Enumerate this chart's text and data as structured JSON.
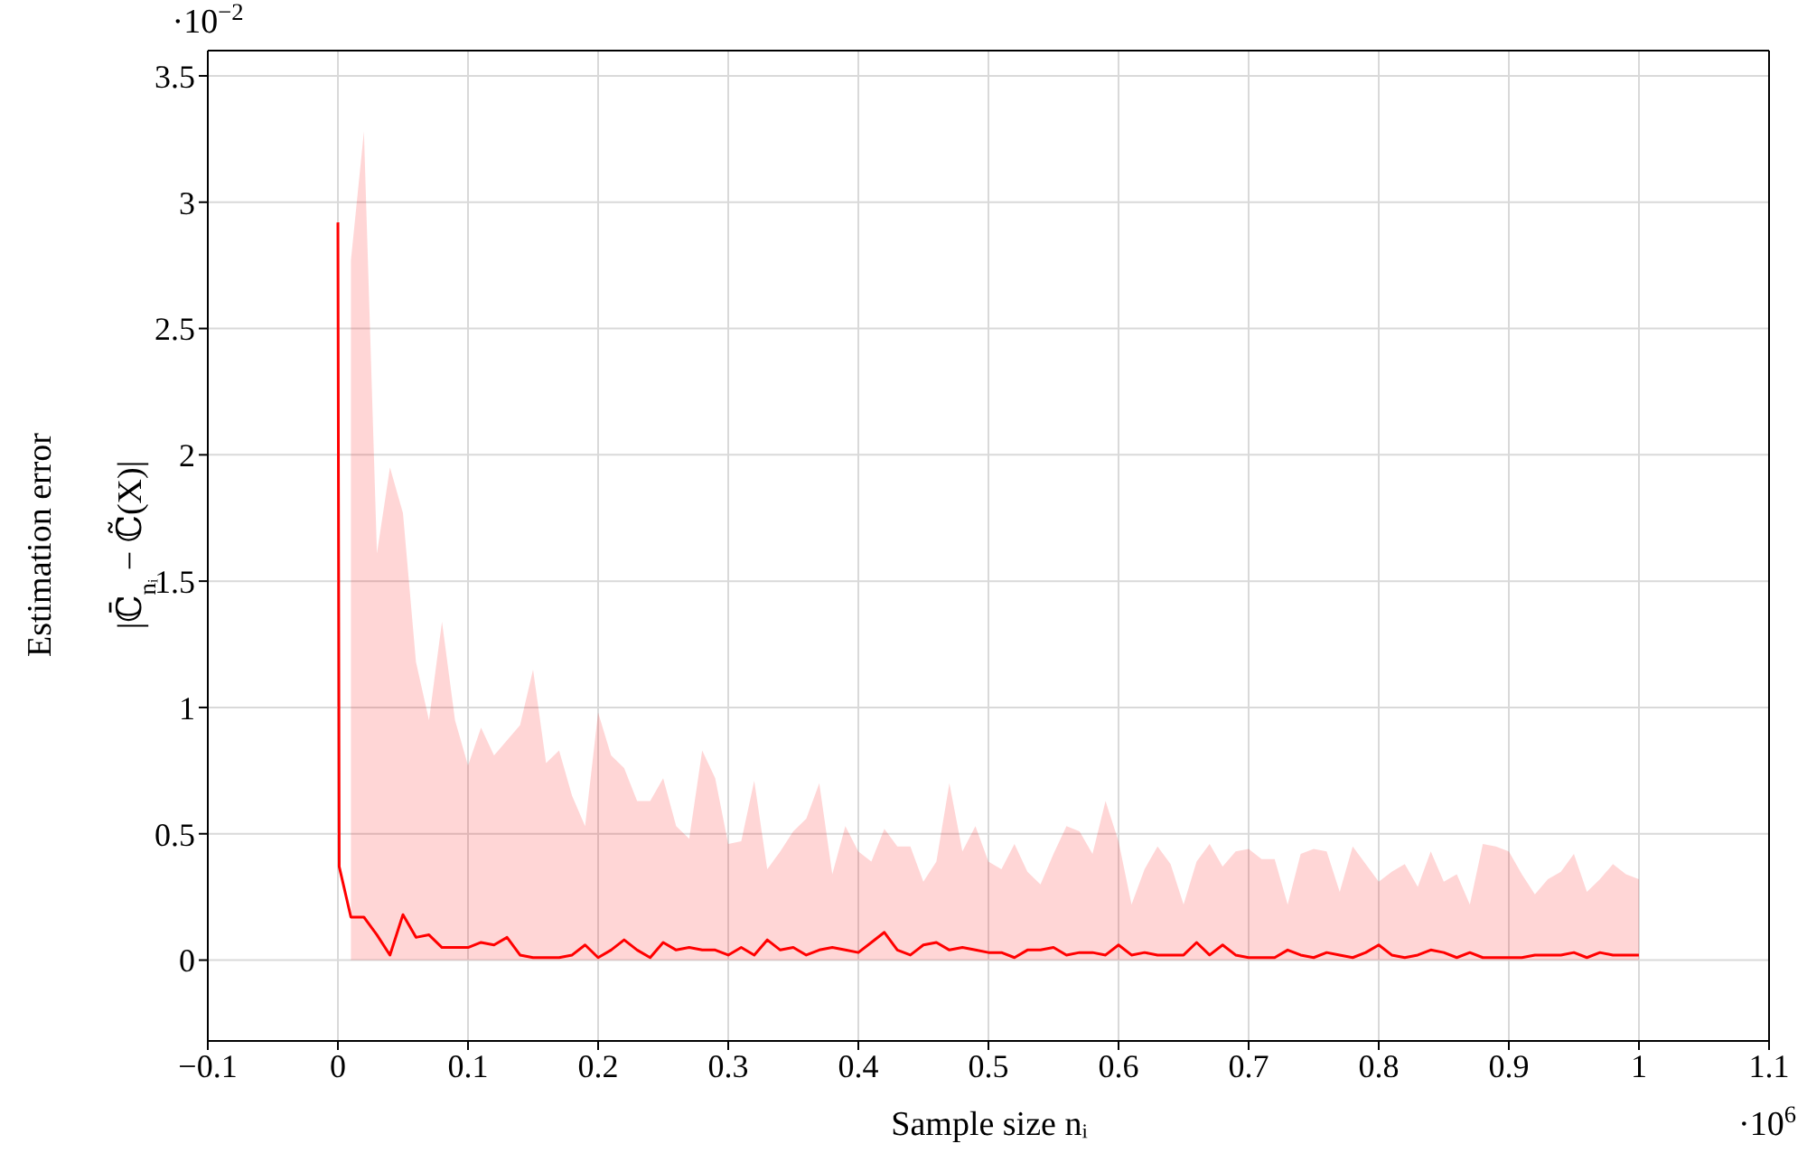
{
  "chart_data": {
    "type": "line",
    "xlabel": "Sample size nᵢ",
    "ylabel": "Estimation error\n|ℂ̄$_{nᵢ}$ − ℂ̃(X)|",
    "annotations": [
      "·10$^{−2}$",
      "·10$^{6}$"
    ],
    "xlim": [
      -0.1,
      1.1
    ],
    "xticks": [
      {
        "value": -0.1,
        "label": "−0.1"
      },
      0,
      0.1,
      0.2,
      0.3,
      0.4,
      0.5,
      0.6,
      0.7,
      0.8,
      0.9,
      1,
      1.1
    ],
    "ylim": [
      -0.32,
      3.6
    ],
    "yticks": [
      0,
      0.5,
      1,
      1.5,
      2,
      2.5,
      3,
      3.5
    ],
    "grid": true,
    "marker": "none",
    "line_style": "solid",
    "series": [
      {
        "color": "#ff0000",
        "x": [
          0,
          0.001,
          0.01,
          0.02,
          0.03,
          0.04,
          0.05,
          0.06,
          0.07,
          0.08,
          0.09,
          0.1,
          0.11,
          0.12,
          0.13,
          0.14,
          0.15,
          0.16,
          0.17,
          0.18,
          0.19,
          0.2,
          0.21,
          0.22,
          0.23,
          0.24,
          0.25,
          0.26,
          0.27,
          0.28,
          0.29,
          0.3,
          0.31,
          0.32,
          0.33,
          0.34,
          0.35,
          0.36,
          0.37,
          0.38,
          0.39,
          0.4,
          0.41,
          0.42,
          0.43,
          0.44,
          0.45,
          0.46,
          0.47,
          0.48,
          0.49,
          0.5,
          0.51,
          0.52,
          0.53,
          0.54,
          0.55,
          0.56,
          0.57,
          0.58,
          0.59,
          0.6,
          0.61,
          0.62,
          0.63,
          0.64,
          0.65,
          0.66,
          0.67,
          0.68,
          0.69,
          0.7,
          0.71,
          0.72,
          0.73,
          0.74,
          0.75,
          0.76,
          0.77,
          0.78,
          0.79,
          0.8,
          0.81,
          0.82,
          0.83,
          0.84,
          0.85,
          0.86,
          0.87,
          0.88,
          0.89,
          0.9,
          0.91,
          0.92,
          0.93,
          0.94,
          0.95,
          0.96,
          0.97,
          0.98,
          0.99,
          1
        ],
        "values": [
          2.92,
          0.37,
          0.17,
          0.17,
          0.1,
          0.02,
          0.18,
          0.09,
          0.1,
          0.05,
          0.05,
          0.05,
          0.07,
          0.06,
          0.09,
          0.02,
          0.01,
          0.01,
          0.01,
          0.02,
          0.06,
          0.01,
          0.04,
          0.08,
          0.04,
          0.01,
          0.07,
          0.04,
          0.05,
          0.04,
          0.04,
          0.02,
          0.05,
          0.02,
          0.08,
          0.04,
          0.05,
          0.02,
          0.04,
          0.05,
          0.04,
          0.03,
          0.07,
          0.11,
          0.04,
          0.02,
          0.06,
          0.07,
          0.04,
          0.05,
          0.04,
          0.03,
          0.03,
          0.01,
          0.04,
          0.04,
          0.05,
          0.02,
          0.03,
          0.03,
          0.02,
          0.06,
          0.02,
          0.03,
          0.02,
          0.02,
          0.02,
          0.07,
          0.02,
          0.06,
          0.02,
          0.01,
          0.01,
          0.01,
          0.04,
          0.02,
          0.01,
          0.03,
          0.02,
          0.01,
          0.03,
          0.06,
          0.02,
          0.01,
          0.02,
          0.04,
          0.03,
          0.01,
          0.03,
          0.01,
          0.01,
          0.01,
          0.01,
          0.02,
          0.02,
          0.02,
          0.03,
          0.01,
          0.03,
          0.02,
          0.02,
          0.02
        ],
        "lower": [
          null,
          null,
          0,
          0,
          0,
          0,
          0,
          0,
          0,
          0,
          0,
          0,
          0,
          0,
          0,
          0,
          0,
          0,
          0,
          0,
          0,
          0,
          0,
          0,
          0,
          0,
          0,
          0,
          0,
          0,
          0,
          0,
          0,
          0,
          0,
          0,
          0,
          0,
          0,
          0,
          0,
          0,
          0,
          0,
          0,
          0,
          0,
          0,
          0,
          0,
          0,
          0,
          0,
          0,
          0,
          0,
          0,
          0,
          0,
          0,
          0,
          0,
          0,
          0,
          0,
          0,
          0,
          0,
          0,
          0,
          0,
          0,
          0,
          0,
          0,
          0,
          0,
          0,
          0,
          0,
          0,
          0,
          0,
          0,
          0,
          0,
          0,
          0,
          0,
          0,
          0,
          0,
          0,
          0,
          0,
          0,
          0,
          0,
          0,
          0,
          0,
          0
        ],
        "upper": [
          null,
          null,
          2.77,
          3.28,
          1.61,
          1.95,
          1.77,
          1.18,
          0.95,
          1.34,
          0.95,
          0.77,
          0.92,
          0.81,
          0.87,
          0.93,
          1.15,
          0.78,
          0.83,
          0.65,
          0.53,
          0.98,
          0.81,
          0.76,
          0.63,
          0.63,
          0.72,
          0.53,
          0.48,
          0.83,
          0.72,
          0.46,
          0.47,
          0.71,
          0.36,
          0.43,
          0.51,
          0.56,
          0.7,
          0.34,
          0.53,
          0.43,
          0.39,
          0.52,
          0.45,
          0.45,
          0.31,
          0.39,
          0.7,
          0.43,
          0.53,
          0.39,
          0.36,
          0.46,
          0.35,
          0.3,
          0.42,
          0.53,
          0.51,
          0.42,
          0.63,
          0.47,
          0.22,
          0.36,
          0.45,
          0.38,
          0.22,
          0.39,
          0.46,
          0.37,
          0.43,
          0.44,
          0.4,
          0.4,
          0.22,
          0.42,
          0.44,
          0.43,
          0.27,
          0.45,
          0.38,
          0.31,
          0.35,
          0.38,
          0.29,
          0.43,
          0.31,
          0.34,
          0.22,
          0.46,
          0.45,
          0.43,
          0.34,
          0.26,
          0.32,
          0.35,
          0.42,
          0.27,
          0.32,
          0.38,
          0.34,
          0.32
        ]
      }
    ]
  }
}
